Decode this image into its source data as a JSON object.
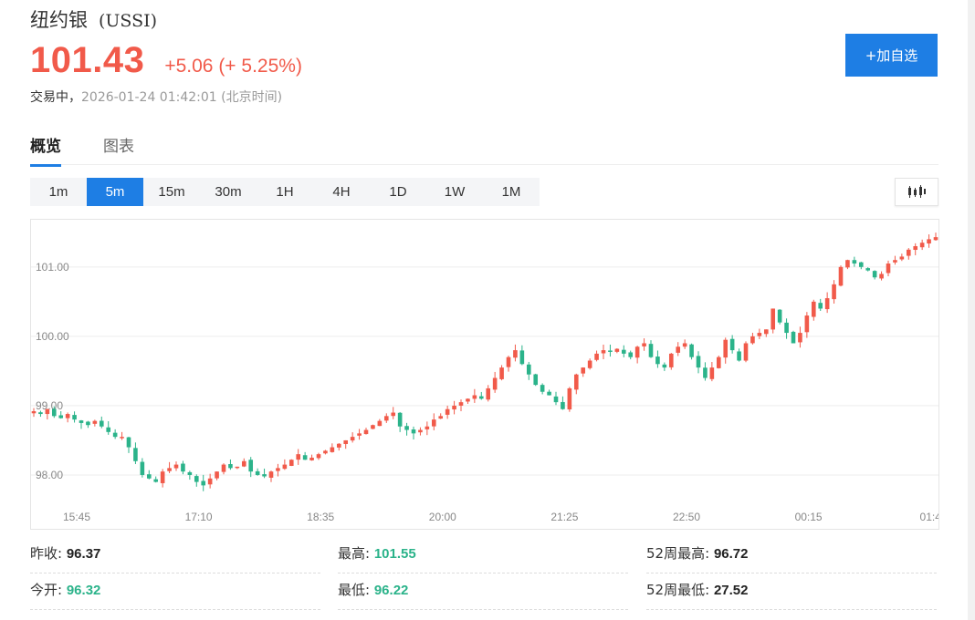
{
  "header": {
    "name": "纽约银",
    "code": "(USSI)",
    "price": "101.43",
    "change": "+5.06 (+ 5.25%)",
    "status": "交易中，",
    "timestamp": "2026-01-24 01:42:01 (北京时间)",
    "add_button": "+加自选"
  },
  "tabs": [
    {
      "label": "概览",
      "active": true
    },
    {
      "label": "图表",
      "active": false
    }
  ],
  "periods": [
    {
      "label": "1m"
    },
    {
      "label": "5m",
      "active": true
    },
    {
      "label": "15m"
    },
    {
      "label": "30m"
    },
    {
      "label": "1H"
    },
    {
      "label": "4H"
    },
    {
      "label": "1D"
    },
    {
      "label": "1W"
    },
    {
      "label": "1M"
    }
  ],
  "chart_type_icon": "candlestick-icon",
  "colors": {
    "up": "#f15a4a",
    "down": "#2bb38a",
    "accent": "#1e7ee4"
  },
  "chart_data": {
    "type": "candlestick",
    "y_ticks": [
      "101.00",
      "100.00",
      "99.00",
      "98.00"
    ],
    "y_tick_values": [
      101,
      100,
      99,
      98
    ],
    "x_ticks": [
      "15:45",
      "17:10",
      "18:35",
      "20:00",
      "21:25",
      "22:50",
      "00:15",
      "01:4"
    ],
    "ylim": [
      97.5,
      101.55
    ],
    "grid": true,
    "close": [
      98.92,
      98.88,
      98.95,
      98.85,
      98.82,
      98.88,
      98.8,
      98.75,
      98.72,
      98.78,
      98.7,
      98.62,
      98.55,
      98.55,
      98.4,
      98.2,
      98.0,
      97.95,
      97.9,
      98.05,
      98.1,
      98.15,
      98.05,
      98.0,
      97.9,
      97.85,
      97.95,
      98.05,
      98.15,
      98.1,
      98.12,
      98.2,
      98.05,
      98.0,
      97.98,
      98.05,
      98.1,
      98.15,
      98.22,
      98.3,
      98.22,
      98.25,
      98.3,
      98.35,
      98.4,
      98.45,
      98.5,
      98.55,
      98.6,
      98.65,
      98.72,
      98.78,
      98.85,
      98.9,
      98.7,
      98.65,
      98.6,
      98.65,
      98.7,
      98.8,
      98.85,
      98.95,
      99.0,
      99.05,
      99.1,
      99.15,
      99.1,
      99.25,
      99.4,
      99.55,
      99.7,
      99.8,
      99.6,
      99.45,
      99.3,
      99.2,
      99.15,
      99.05,
      98.95,
      99.25,
      99.45,
      99.55,
      99.65,
      99.75,
      99.8,
      99.78,
      99.82,
      99.75,
      99.7,
      99.85,
      99.9,
      99.7,
      99.6,
      99.55,
      99.75,
      99.85,
      99.9,
      99.7,
      99.55,
      99.4,
      99.55,
      99.7,
      99.95,
      99.8,
      99.65,
      99.9,
      100.0,
      100.05,
      100.1,
      100.4,
      100.2,
      100.05,
      99.9,
      100.05,
      100.3,
      100.5,
      100.4,
      100.55,
      100.75,
      101.0,
      101.1,
      101.05,
      101.0,
      100.95,
      100.85,
      100.9,
      101.05,
      101.1,
      101.15,
      101.25,
      101.3,
      101.35,
      101.4,
      101.43
    ]
  },
  "stats": [
    {
      "label": "昨收:",
      "value": "96.37",
      "color": "#222222"
    },
    {
      "label": "最高:",
      "value": "101.55",
      "color": "#2bb38a"
    },
    {
      "label": "52周最高:",
      "value": "96.72",
      "color": "#222222"
    },
    {
      "label": "今开:",
      "value": "96.32",
      "color": "#2bb38a"
    },
    {
      "label": "最低:",
      "value": "96.22",
      "color": "#2bb38a"
    },
    {
      "label": "52周最低:",
      "value": "27.52",
      "color": "#222222"
    }
  ]
}
